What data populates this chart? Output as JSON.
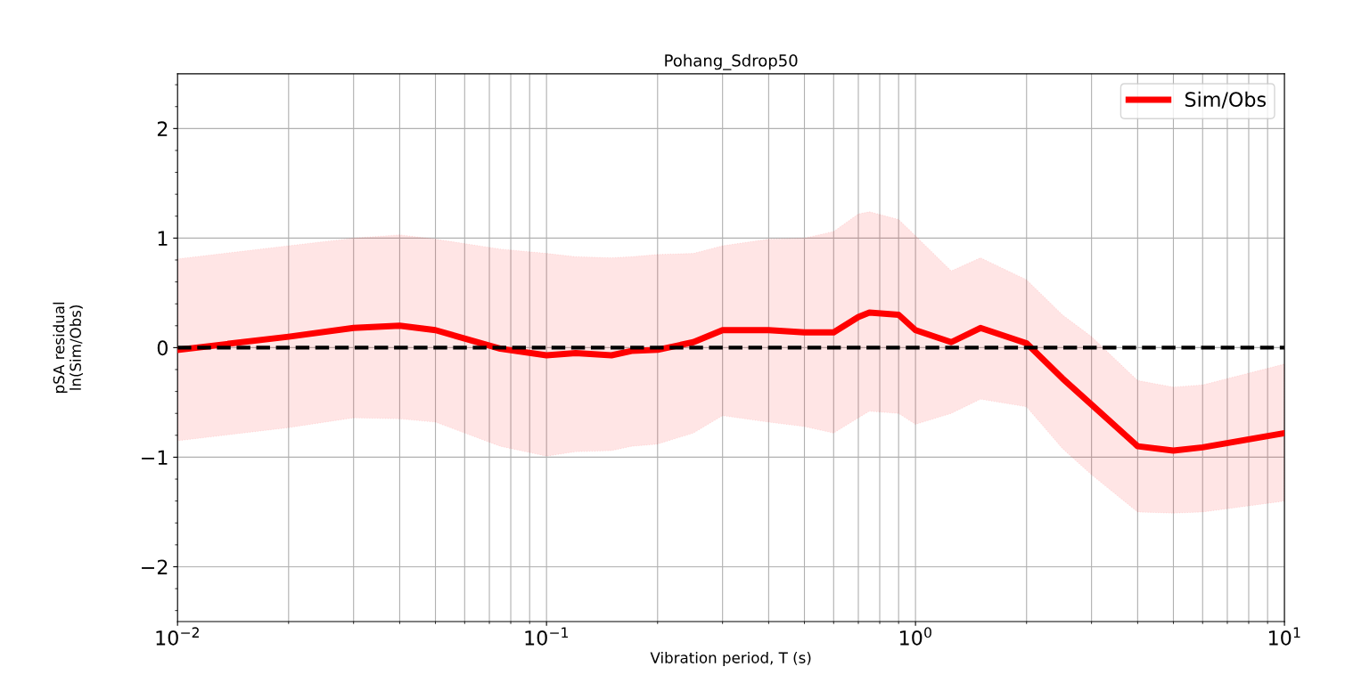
{
  "chart_data": {
    "type": "line",
    "title": "Pohang_Sdrop50",
    "xlabel": "Vibration period, T (s)",
    "ylabel": "pSA residual\nln(Sim/Obs)",
    "log": "x",
    "grid": true,
    "legend": "top right",
    "line_style": "solid",
    "marker": "none",
    "xlim": [
      0.01,
      10
    ],
    "xticks": [
      {
        "value": 0.01,
        "label": "10$^{−2}$"
      },
      {
        "value": 0.1,
        "label": "10$^{−1}$"
      },
      {
        "value": 1,
        "label": "10$^{0}$"
      },
      {
        "value": 10,
        "label": "10$^{1}$"
      }
    ],
    "ylim": [
      -2.5,
      2.5
    ],
    "yticks": [
      {
        "value": -2,
        "label": "−2"
      },
      {
        "value": -1,
        "label": "−1"
      },
      0,
      1,
      2
    ],
    "ref_lines": [
      {
        "axis": "y",
        "value": 0,
        "color": "#000000",
        "line_style": "dashed"
      }
    ],
    "series": [
      {
        "name": "Sim/Obs",
        "color": "#ff0000",
        "x": [
          0.01,
          0.02,
          0.03,
          0.04,
          0.05,
          0.075,
          0.1,
          0.12,
          0.15,
          0.17,
          0.2,
          0.25,
          0.3,
          0.4,
          0.5,
          0.6,
          0.7,
          0.75,
          0.9,
          1.0,
          1.25,
          1.5,
          2.0,
          2.5,
          3.0,
          4.0,
          5.0,
          6.0,
          10
        ],
        "values": [
          -0.02,
          0.1,
          0.18,
          0.2,
          0.16,
          -0.01,
          -0.07,
          -0.05,
          -0.07,
          -0.03,
          -0.02,
          0.05,
          0.16,
          0.16,
          0.14,
          0.14,
          0.28,
          0.32,
          0.3,
          0.16,
          0.05,
          0.18,
          0.04,
          -0.28,
          -0.52,
          -0.9,
          -0.94,
          -0.91,
          -0.78
        ],
        "lower": [
          -0.85,
          -0.73,
          -0.64,
          -0.65,
          -0.68,
          -0.9,
          -0.99,
          -0.95,
          -0.94,
          -0.9,
          -0.88,
          -0.78,
          -0.62,
          -0.68,
          -0.72,
          -0.78,
          -0.64,
          -0.58,
          -0.6,
          -0.7,
          -0.6,
          -0.47,
          -0.54,
          -0.92,
          -1.16,
          -1.5,
          -1.51,
          -1.5,
          -1.4
        ],
        "upper": [
          0.81,
          0.93,
          1.0,
          1.03,
          0.99,
          0.9,
          0.86,
          0.83,
          0.82,
          0.83,
          0.85,
          0.86,
          0.93,
          0.99,
          1.0,
          1.06,
          1.22,
          1.24,
          1.17,
          1.02,
          0.7,
          0.82,
          0.62,
          0.3,
          0.1,
          -0.3,
          -0.36,
          -0.34,
          -0.15
        ]
      }
    ]
  }
}
